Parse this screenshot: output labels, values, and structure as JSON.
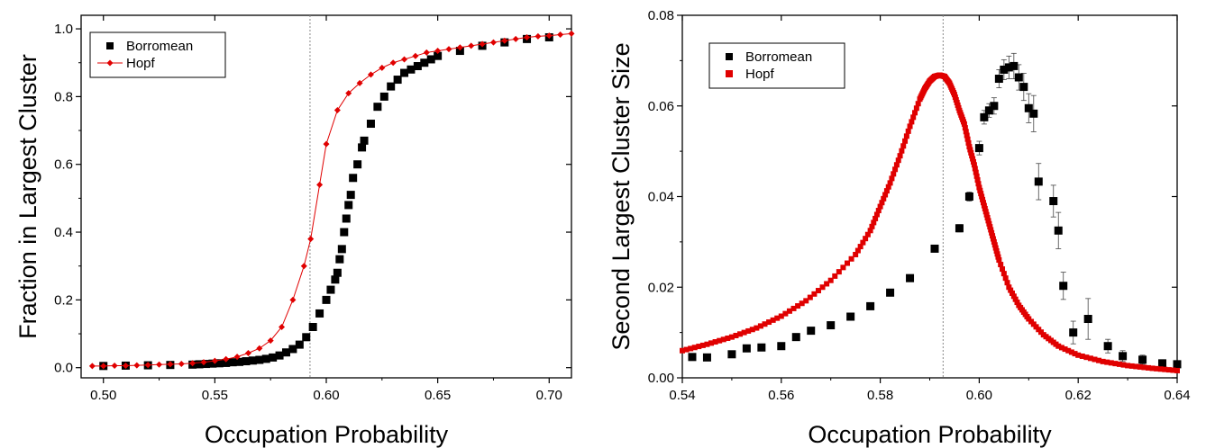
{
  "chart_data": [
    {
      "type": "scatter",
      "xlabel": "Occupation Probability",
      "ylabel": "Fraction in Largest Cluster",
      "xlim": [
        0.49,
        0.71
      ],
      "ylim": [
        -0.03,
        1.04
      ],
      "xticks": [
        0.5,
        0.55,
        0.6,
        0.65,
        0.7
      ],
      "xtick_labels": [
        "0.50",
        "0.55",
        "0.60",
        "0.65",
        "0.70"
      ],
      "yticks": [
        0.0,
        0.2,
        0.4,
        0.6,
        0.8,
        1.0
      ],
      "ytick_labels": [
        "0.0",
        "0.2",
        "0.4",
        "0.6",
        "0.8",
        "1.0"
      ],
      "reference_line_x": 0.5927,
      "grid": false,
      "legend_position": "top-left",
      "series": [
        {
          "name": "Borromean",
          "marker": "square",
          "color": "#000000",
          "line": false,
          "x": [
            0.5,
            0.51,
            0.52,
            0.53,
            0.54,
            0.543,
            0.546,
            0.549,
            0.552,
            0.555,
            0.558,
            0.561,
            0.564,
            0.567,
            0.57,
            0.573,
            0.576,
            0.579,
            0.582,
            0.585,
            0.588,
            0.591,
            0.594,
            0.597,
            0.6,
            0.602,
            0.604,
            0.605,
            0.606,
            0.607,
            0.608,
            0.609,
            0.61,
            0.611,
            0.612,
            0.614,
            0.616,
            0.617,
            0.62,
            0.623,
            0.626,
            0.629,
            0.632,
            0.635,
            0.638,
            0.641,
            0.644,
            0.647,
            0.65,
            0.66,
            0.67,
            0.68,
            0.69,
            0.7
          ],
          "y": [
            0.005,
            0.006,
            0.007,
            0.008,
            0.009,
            0.01,
            0.011,
            0.012,
            0.013,
            0.014,
            0.016,
            0.017,
            0.019,
            0.021,
            0.023,
            0.026,
            0.03,
            0.036,
            0.045,
            0.055,
            0.068,
            0.09,
            0.12,
            0.16,
            0.2,
            0.23,
            0.26,
            0.28,
            0.32,
            0.35,
            0.4,
            0.44,
            0.48,
            0.51,
            0.56,
            0.6,
            0.65,
            0.67,
            0.72,
            0.77,
            0.8,
            0.83,
            0.85,
            0.87,
            0.88,
            0.89,
            0.9,
            0.91,
            0.92,
            0.935,
            0.95,
            0.96,
            0.97,
            0.975
          ]
        },
        {
          "name": "Hopf",
          "marker": "diamond",
          "color": "#e00000",
          "line": true,
          "x": [
            0.495,
            0.5,
            0.505,
            0.51,
            0.515,
            0.52,
            0.525,
            0.53,
            0.535,
            0.54,
            0.545,
            0.55,
            0.555,
            0.56,
            0.565,
            0.57,
            0.575,
            0.58,
            0.585,
            0.59,
            0.593,
            0.597,
            0.6,
            0.605,
            0.61,
            0.615,
            0.62,
            0.625,
            0.63,
            0.635,
            0.64,
            0.645,
            0.65,
            0.655,
            0.66,
            0.665,
            0.67,
            0.675,
            0.68,
            0.685,
            0.69,
            0.695,
            0.7,
            0.705,
            0.71
          ],
          "y": [
            0.005,
            0.005,
            0.006,
            0.006,
            0.007,
            0.008,
            0.009,
            0.01,
            0.011,
            0.013,
            0.016,
            0.02,
            0.025,
            0.032,
            0.043,
            0.057,
            0.08,
            0.12,
            0.2,
            0.3,
            0.38,
            0.54,
            0.66,
            0.76,
            0.81,
            0.84,
            0.865,
            0.885,
            0.9,
            0.91,
            0.92,
            0.93,
            0.935,
            0.94,
            0.945,
            0.95,
            0.955,
            0.96,
            0.965,
            0.97,
            0.975,
            0.978,
            0.98,
            0.983,
            0.986
          ]
        }
      ]
    },
    {
      "type": "scatter",
      "xlabel": "Occupation Probability",
      "ylabel": "Second Largest Cluster Size",
      "xlim": [
        0.54,
        0.64
      ],
      "ylim": [
        0.0,
        0.08
      ],
      "xticks": [
        0.54,
        0.56,
        0.58,
        0.6,
        0.62,
        0.64
      ],
      "xtick_labels": [
        "0.54",
        "0.56",
        "0.58",
        "0.60",
        "0.62",
        "0.64"
      ],
      "yticks": [
        0.0,
        0.02,
        0.04,
        0.06,
        0.08
      ],
      "ytick_labels": [
        "0.00",
        "0.02",
        "0.04",
        "0.06",
        "0.08"
      ],
      "reference_line_x": 0.5927,
      "grid": false,
      "legend_position": "top-left",
      "series": [
        {
          "name": "Borromean",
          "marker": "square",
          "color": "#000000",
          "error_bars": true,
          "x": [
            0.542,
            0.545,
            0.55,
            0.553,
            0.556,
            0.56,
            0.563,
            0.566,
            0.57,
            0.574,
            0.578,
            0.582,
            0.586,
            0.591,
            0.596,
            0.598,
            0.6,
            0.601,
            0.602,
            0.603,
            0.604,
            0.605,
            0.606,
            0.607,
            0.608,
            0.609,
            0.61,
            0.611,
            0.612,
            0.615,
            0.616,
            0.617,
            0.619,
            0.622,
            0.626,
            0.629,
            0.633,
            0.637,
            0.64
          ],
          "y": [
            0.0046,
            0.0045,
            0.0052,
            0.0065,
            0.0067,
            0.007,
            0.009,
            0.0104,
            0.0116,
            0.0135,
            0.0158,
            0.0188,
            0.022,
            0.0285,
            0.033,
            0.04,
            0.0507,
            0.0575,
            0.059,
            0.06,
            0.066,
            0.068,
            0.0685,
            0.0688,
            0.0663,
            0.0642,
            0.0595,
            0.0583,
            0.0433,
            0.039,
            0.0325,
            0.0203,
            0.01,
            0.013,
            0.007,
            0.0048,
            0.004,
            0.0032,
            0.003
          ],
          "errors": [
            0.0003,
            0.0003,
            0.0003,
            0.0003,
            0.0003,
            0.0003,
            0.0003,
            0.0003,
            0.0004,
            0.0004,
            0.0004,
            0.0005,
            0.0005,
            0.0006,
            0.0008,
            0.001,
            0.0015,
            0.0015,
            0.0015,
            0.0018,
            0.002,
            0.0022,
            0.0025,
            0.0028,
            0.0028,
            0.003,
            0.0032,
            0.004,
            0.004,
            0.0035,
            0.004,
            0.003,
            0.0025,
            0.0045,
            0.0015,
            0.0012,
            0.001,
            0.0008,
            0.0008
          ]
        },
        {
          "name": "Hopf",
          "marker": "square",
          "color": "#e00000",
          "dense": true,
          "x": [
            0.54,
            0.545,
            0.55,
            0.555,
            0.56,
            0.565,
            0.57,
            0.575,
            0.578,
            0.58,
            0.582,
            0.584,
            0.586,
            0.588,
            0.589,
            0.59,
            0.591,
            0.592,
            0.593,
            0.594,
            0.595,
            0.596,
            0.597,
            0.598,
            0.599,
            0.6,
            0.601,
            0.602,
            0.603,
            0.604,
            0.606,
            0.608,
            0.61,
            0.613,
            0.616,
            0.62,
            0.625,
            0.63,
            0.635,
            0.64
          ],
          "y": [
            0.006,
            0.0074,
            0.009,
            0.011,
            0.0136,
            0.017,
            0.0215,
            0.0272,
            0.0325,
            0.0378,
            0.043,
            0.049,
            0.0555,
            0.0615,
            0.0638,
            0.0655,
            0.0665,
            0.0668,
            0.0665,
            0.065,
            0.0625,
            0.059,
            0.056,
            0.051,
            0.047,
            0.042,
            0.038,
            0.034,
            0.03,
            0.026,
            0.02,
            0.016,
            0.013,
            0.0095,
            0.007,
            0.005,
            0.0036,
            0.0027,
            0.0021,
            0.0016
          ]
        }
      ]
    }
  ]
}
